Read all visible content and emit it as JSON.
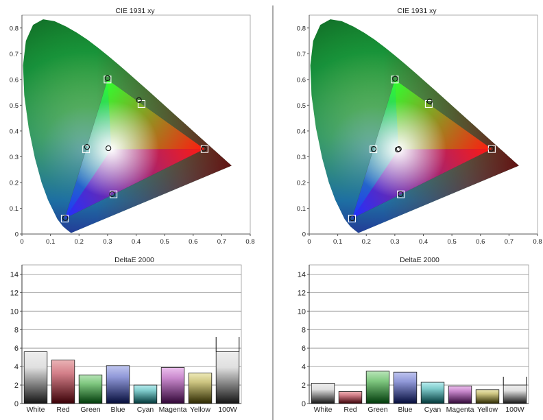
{
  "chart_data": [
    {
      "type": "scatter",
      "title": "CIE 1931 xy",
      "xlim": [
        0,
        0.8
      ],
      "ylim": [
        0,
        0.85
      ],
      "xticks": [
        "0",
        "0.1",
        "0.2",
        "0.3",
        "0.4",
        "0.5",
        "0.6",
        "0.7",
        "0.8"
      ],
      "yticks": [
        "0",
        "0.1",
        "0.2",
        "0.3",
        "0.4",
        "0.5",
        "0.6",
        "0.7",
        "0.8"
      ],
      "grid": false,
      "targets": [
        {
          "x": 0.64,
          "y": 0.33
        },
        {
          "x": 0.3,
          "y": 0.6
        },
        {
          "x": 0.15,
          "y": 0.06
        },
        {
          "x": 0.225,
          "y": 0.329
        },
        {
          "x": 0.321,
          "y": 0.154
        },
        {
          "x": 0.419,
          "y": 0.505
        }
      ],
      "measured": [
        {
          "x": 0.637,
          "y": 0.331
        },
        {
          "x": 0.3,
          "y": 0.605
        },
        {
          "x": 0.152,
          "y": 0.062
        },
        {
          "x": 0.228,
          "y": 0.338
        },
        {
          "x": 0.316,
          "y": 0.155
        },
        {
          "x": 0.41,
          "y": 0.52
        },
        {
          "x": 0.303,
          "y": 0.333
        }
      ]
    },
    {
      "type": "scatter",
      "title": "CIE 1931 xy",
      "xlim": [
        0,
        0.8
      ],
      "ylim": [
        0,
        0.85
      ],
      "xticks": [
        "0",
        "0.1",
        "0.2",
        "0.3",
        "0.4",
        "0.5",
        "0.6",
        "0.7",
        "0.8"
      ],
      "yticks": [
        "0",
        "0.1",
        "0.2",
        "0.3",
        "0.4",
        "0.5",
        "0.6",
        "0.7",
        "0.8"
      ],
      "grid": false,
      "targets": [
        {
          "x": 0.64,
          "y": 0.33
        },
        {
          "x": 0.3,
          "y": 0.6
        },
        {
          "x": 0.15,
          "y": 0.06
        },
        {
          "x": 0.225,
          "y": 0.329
        },
        {
          "x": 0.321,
          "y": 0.154
        },
        {
          "x": 0.419,
          "y": 0.505
        }
      ],
      "measured": [
        {
          "x": 0.638,
          "y": 0.331
        },
        {
          "x": 0.301,
          "y": 0.603
        },
        {
          "x": 0.151,
          "y": 0.061
        },
        {
          "x": 0.226,
          "y": 0.33
        },
        {
          "x": 0.32,
          "y": 0.155
        },
        {
          "x": 0.422,
          "y": 0.515
        },
        {
          "x": 0.31,
          "y": 0.328
        },
        {
          "x": 0.314,
          "y": 0.33
        }
      ]
    },
    {
      "type": "bar",
      "title": "DeltaE 2000",
      "categories": [
        "White",
        "Red",
        "Green",
        "Blue",
        "Cyan",
        "Magenta",
        "Yellow",
        "100W"
      ],
      "values": [
        5.6,
        4.7,
        3.1,
        4.1,
        2.0,
        3.9,
        3.3,
        5.6
      ],
      "error_top": [
        null,
        null,
        null,
        null,
        null,
        null,
        null,
        7.2
      ],
      "colors": [
        "#e4e4e4",
        "#e8a4a8",
        "#a8dcaa",
        "#b0b8e8",
        "#a8e4e8",
        "#e2b0e6",
        "#e8e4a8",
        "#e4e4e4"
      ],
      "ylim": [
        0,
        15
      ],
      "yticks": [
        "0",
        "2",
        "4",
        "6",
        "8",
        "10",
        "12",
        "14"
      ],
      "grid": true
    },
    {
      "type": "bar",
      "title": "DeltaE 2000",
      "categories": [
        "White",
        "Red",
        "Green",
        "Blue",
        "Cyan",
        "Magenta",
        "Yellow",
        "100W"
      ],
      "values": [
        2.2,
        1.3,
        3.5,
        3.4,
        2.3,
        1.9,
        1.5,
        2.0
      ],
      "error_top": [
        null,
        null,
        null,
        null,
        null,
        null,
        null,
        2.9
      ],
      "colors": [
        "#e4e4e4",
        "#e8a4a8",
        "#a8dcaa",
        "#b0b8e8",
        "#a8e4e8",
        "#e2b0e6",
        "#e8e4a8",
        "#e4e4e4"
      ],
      "ylim": [
        0,
        15
      ],
      "yticks": [
        "0",
        "2",
        "4",
        "6",
        "8",
        "10",
        "12",
        "14"
      ],
      "grid": true
    }
  ]
}
